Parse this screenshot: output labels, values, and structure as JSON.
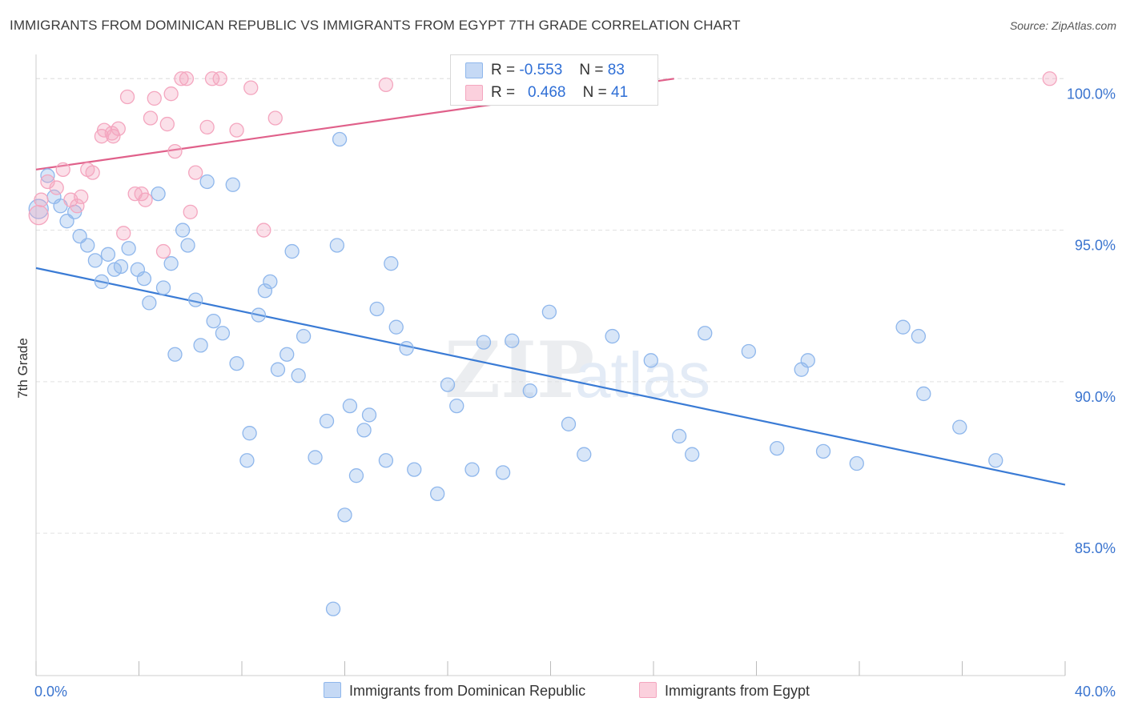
{
  "title": "IMMIGRANTS FROM DOMINICAN REPUBLIC VS IMMIGRANTS FROM EGYPT 7TH GRADE CORRELATION CHART",
  "source": "Source: ZipAtlas.com",
  "watermark": {
    "zip": "ZIP",
    "atlas": "atlas"
  },
  "legend": {
    "r_label": "R =",
    "n_label": "N =",
    "series": [
      {
        "r": "-0.553",
        "n": "83"
      },
      {
        "r": "0.468",
        "n": "41"
      }
    ]
  },
  "chart_data": {
    "type": "scatter",
    "xlabel": "",
    "ylabel": "7th Grade",
    "xlim": [
      0,
      40
    ],
    "ylim": [
      80.3,
      100.8
    ],
    "x_ticks": [
      "0.0%",
      "40.0%"
    ],
    "y_ticks": [
      {
        "value": 85,
        "label": "85.0%"
      },
      {
        "value": 90,
        "label": "90.0%"
      },
      {
        "value": 95,
        "label": "95.0%"
      },
      {
        "value": 100,
        "label": "100.0%"
      }
    ],
    "grid": true,
    "legend_position": "bottom",
    "series": [
      {
        "name": "Immigrants from Dominican Republic",
        "color": "#8fb7ec",
        "line_color": "#3a7bd5",
        "trend": {
          "x": [
            0,
            40
          ],
          "y": [
            93.75,
            86.6
          ]
        },
        "points": [
          [
            0.1,
            95.7
          ],
          [
            0.45,
            96.8
          ],
          [
            0.7,
            96.1
          ],
          [
            0.95,
            95.8
          ],
          [
            1.2,
            95.3
          ],
          [
            1.5,
            95.6
          ],
          [
            1.7,
            94.8
          ],
          [
            2.0,
            94.5
          ],
          [
            2.3,
            94.0
          ],
          [
            2.55,
            93.3
          ],
          [
            2.8,
            94.2
          ],
          [
            3.05,
            93.7
          ],
          [
            3.3,
            93.8
          ],
          [
            3.6,
            94.4
          ],
          [
            3.95,
            93.7
          ],
          [
            4.2,
            93.4
          ],
          [
            4.4,
            92.6
          ],
          [
            4.75,
            96.2
          ],
          [
            4.95,
            93.1
          ],
          [
            5.25,
            93.9
          ],
          [
            5.4,
            90.9
          ],
          [
            5.7,
            95.0
          ],
          [
            5.9,
            94.5
          ],
          [
            6.2,
            92.7
          ],
          [
            6.4,
            91.2
          ],
          [
            6.65,
            96.6
          ],
          [
            6.9,
            92.0
          ],
          [
            7.25,
            91.6
          ],
          [
            7.65,
            96.5
          ],
          [
            7.8,
            90.6
          ],
          [
            8.2,
            87.4
          ],
          [
            8.3,
            88.3
          ],
          [
            8.65,
            92.2
          ],
          [
            8.9,
            93.0
          ],
          [
            9.1,
            93.3
          ],
          [
            9.4,
            90.4
          ],
          [
            9.75,
            90.9
          ],
          [
            9.95,
            94.3
          ],
          [
            10.2,
            90.2
          ],
          [
            10.4,
            91.5
          ],
          [
            10.85,
            87.5
          ],
          [
            11.3,
            88.7
          ],
          [
            11.55,
            82.5
          ],
          [
            11.7,
            94.5
          ],
          [
            11.8,
            98.0
          ],
          [
            12.0,
            85.6
          ],
          [
            12.2,
            89.2
          ],
          [
            12.45,
            86.9
          ],
          [
            12.75,
            88.4
          ],
          [
            12.95,
            88.9
          ],
          [
            13.25,
            92.4
          ],
          [
            13.6,
            87.4
          ],
          [
            13.8,
            93.9
          ],
          [
            14.0,
            91.8
          ],
          [
            14.4,
            91.1
          ],
          [
            14.7,
            87.1
          ],
          [
            15.6,
            86.3
          ],
          [
            16.0,
            89.9
          ],
          [
            16.35,
            89.2
          ],
          [
            16.95,
            87.1
          ],
          [
            17.4,
            91.3
          ],
          [
            18.15,
            87.0
          ],
          [
            18.5,
            91.35
          ],
          [
            19.2,
            89.7
          ],
          [
            19.95,
            92.3
          ],
          [
            20.7,
            88.6
          ],
          [
            21.3,
            87.6
          ],
          [
            22.4,
            91.5
          ],
          [
            23.9,
            90.7
          ],
          [
            25.0,
            88.2
          ],
          [
            25.5,
            87.6
          ],
          [
            26.0,
            91.6
          ],
          [
            27.7,
            91.0
          ],
          [
            28.8,
            87.8
          ],
          [
            29.75,
            90.4
          ],
          [
            30.0,
            90.7
          ],
          [
            30.6,
            87.7
          ],
          [
            31.9,
            87.3
          ],
          [
            33.7,
            91.8
          ],
          [
            34.3,
            91.5
          ],
          [
            34.5,
            89.6
          ],
          [
            35.9,
            88.5
          ],
          [
            37.3,
            87.4
          ]
        ]
      },
      {
        "name": "Immigrants from Egypt",
        "color": "#f4a6bf",
        "line_color": "#e0608a",
        "trend": {
          "x": [
            0,
            24.8
          ],
          "y": [
            97.0,
            100.0
          ]
        },
        "points": [
          [
            0.1,
            95.5
          ],
          [
            0.2,
            96.0
          ],
          [
            0.45,
            96.6
          ],
          [
            0.8,
            96.4
          ],
          [
            1.05,
            97.0
          ],
          [
            1.35,
            96.0
          ],
          [
            1.6,
            95.8
          ],
          [
            1.75,
            96.1
          ],
          [
            2.0,
            97.0
          ],
          [
            2.2,
            96.9
          ],
          [
            2.55,
            98.1
          ],
          [
            2.65,
            98.3
          ],
          [
            2.95,
            98.2
          ],
          [
            3.0,
            98.1
          ],
          [
            3.2,
            98.35
          ],
          [
            3.4,
            94.9
          ],
          [
            3.55,
            99.4
          ],
          [
            3.85,
            96.2
          ],
          [
            4.1,
            96.2
          ],
          [
            4.25,
            96.0
          ],
          [
            4.45,
            98.7
          ],
          [
            4.6,
            99.35
          ],
          [
            4.95,
            94.3
          ],
          [
            5.1,
            98.5
          ],
          [
            5.25,
            99.5
          ],
          [
            5.4,
            97.6
          ],
          [
            5.65,
            100.0
          ],
          [
            5.85,
            100.0
          ],
          [
            6.0,
            95.6
          ],
          [
            6.2,
            96.9
          ],
          [
            6.65,
            98.4
          ],
          [
            6.85,
            100.0
          ],
          [
            7.15,
            100.0
          ],
          [
            7.8,
            98.3
          ],
          [
            8.35,
            99.7
          ],
          [
            8.85,
            95.0
          ],
          [
            9.3,
            98.7
          ],
          [
            13.6,
            99.8
          ],
          [
            18.7,
            100.0
          ],
          [
            39.4,
            100.0
          ]
        ]
      }
    ]
  }
}
